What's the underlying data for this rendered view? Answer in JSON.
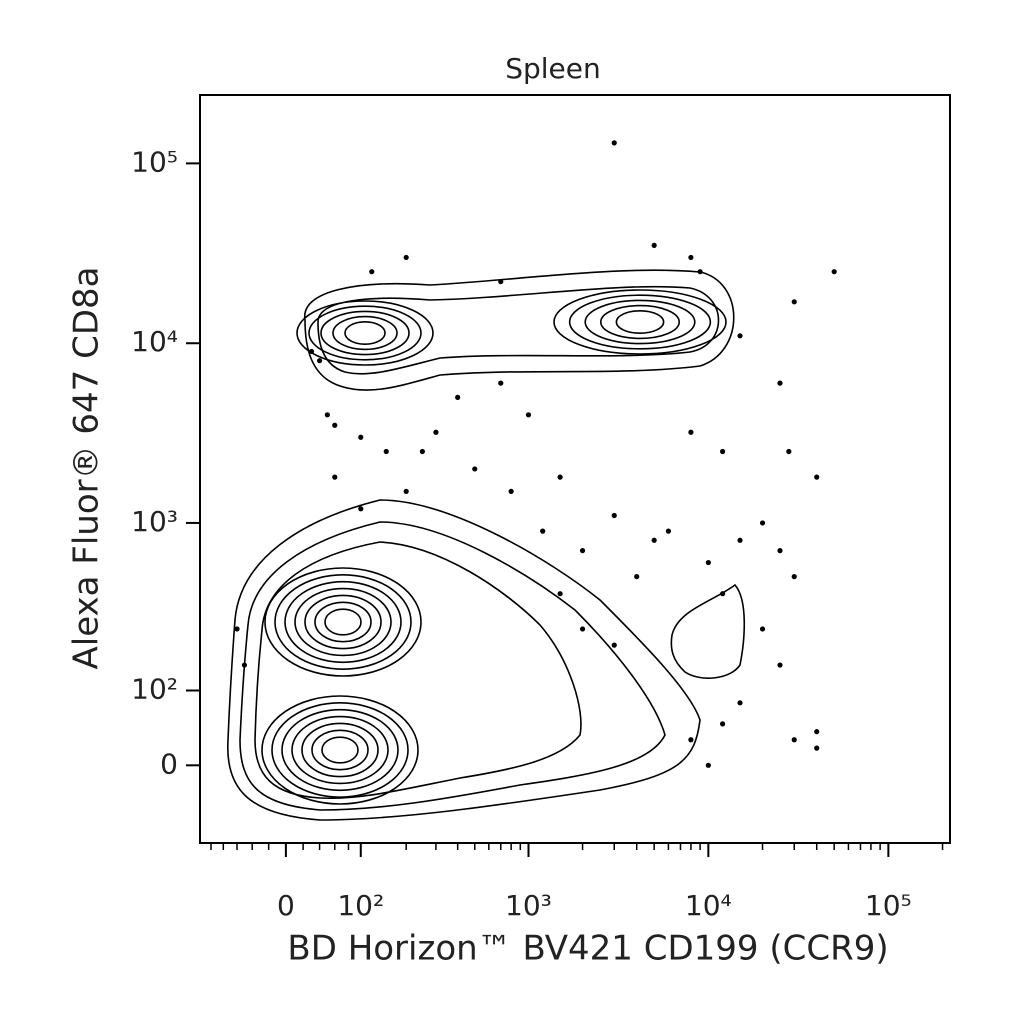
{
  "chart_data": {
    "type": "scatter",
    "title": "Spleen",
    "x_label": "BD Horizon™ BV421 CD199 (CCR9)",
    "y_label": "Alexa Fluor® 647 CD8a",
    "xscale": "biexponential",
    "yscale": "biexponential",
    "color": "#000000",
    "xlim": [
      -120,
      220000
    ],
    "ylim": [
      -105,
      240000
    ],
    "xticks": [
      0,
      {
        "value": 100,
        "label": "10²"
      },
      {
        "value": 1000,
        "label": "10³"
      },
      {
        "value": 10000,
        "label": "10⁴"
      },
      {
        "value": 100000,
        "label": "10⁵"
      }
    ],
    "yticks": [
      0,
      {
        "value": 100,
        "label": "10²"
      },
      {
        "value": 1000,
        "label": "10³"
      },
      {
        "value": 10000,
        "label": "10⁴"
      },
      {
        "value": 100000,
        "label": "10⁵"
      }
    ],
    "xminorticks": [
      -100,
      -80,
      -60,
      -40,
      -20,
      20,
      40,
      60,
      80,
      200,
      300,
      400,
      500,
      600,
      700,
      800,
      900,
      2000,
      3000,
      4000,
      5000,
      6000,
      7000,
      8000,
      9000,
      20000,
      30000,
      40000,
      50000,
      60000,
      70000,
      80000,
      90000,
      200000
    ],
    "x": [
      3000,
      50000,
      200,
      5000,
      8000,
      9000,
      120,
      700,
      30000,
      28000,
      40000,
      25000,
      15000,
      30,
      40,
      60,
      100,
      150,
      300,
      500,
      200,
      800,
      1500,
      3000,
      6000,
      2000,
      4000,
      5000,
      10000,
      12000,
      15000,
      20000,
      25000,
      30000,
      12000,
      8000,
      1000,
      400,
      700,
      20000,
      25000,
      15000,
      12000,
      30000,
      40000,
      40000,
      10000,
      8000,
      100,
      60,
      2000,
      1500,
      3000,
      1200,
      -60,
      -50,
      50,
      250
    ],
    "values": [
      130000,
      25000,
      30000,
      35000,
      30000,
      25000,
      25000,
      22000,
      17000,
      2500,
      1800,
      6000,
      11000,
      9000,
      8000,
      3500,
      3000,
      2500,
      3200,
      2000,
      1500,
      1500,
      1800,
      1100,
      900,
      700,
      500,
      800,
      600,
      400,
      800,
      1000,
      700,
      500,
      2500,
      3200,
      4000,
      5000,
      6000,
      250,
      150,
      80,
      50,
      30,
      40,
      20,
      0,
      30,
      1200,
      1800,
      250,
      400,
      200,
      900,
      250,
      150,
      4000,
      2500
    ]
  }
}
